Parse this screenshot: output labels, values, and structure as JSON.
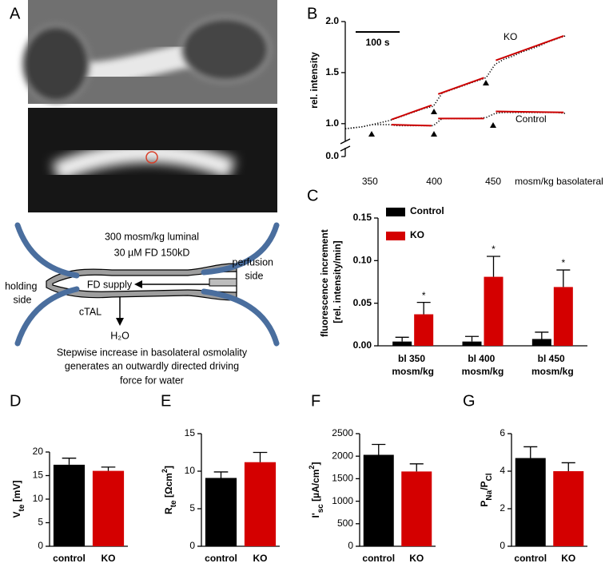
{
  "panel_a": {
    "label": "A",
    "luminal": "300 mosm/kg luminal",
    "perfusate": "30 µM FD 150kD",
    "holding": "holding side",
    "perfusion": "perfusion side",
    "supply": "FD supply",
    "segment": "cTAL",
    "water": "H₂O",
    "caption": [
      "Stepwise increase in basolateral osmolality",
      "generates an outwardly directed driving",
      "force for water"
    ]
  },
  "chart_data": [
    {
      "panel": "B",
      "type": "line",
      "ylabel": "rel. intensity",
      "xlabel": "mosm/kg basolateral",
      "x": [
        0,
        20,
        40,
        60,
        80,
        100,
        120,
        140,
        160,
        180,
        200,
        220,
        240,
        260,
        280,
        300,
        320,
        340,
        360,
        380,
        400,
        420,
        440,
        460,
        480,
        500
      ],
      "series": [
        {
          "name": "KO",
          "color": "#000000",
          "values": [
            0.95,
            0.96,
            0.97,
            0.99,
            1.01,
            1.03,
            1.06,
            1.09,
            1.12,
            1.15,
            1.17,
            1.3,
            1.33,
            1.36,
            1.39,
            1.42,
            1.45,
            1.58,
            1.63,
            1.66,
            1.7,
            1.73,
            1.76,
            1.8,
            1.83,
            1.86
          ]
        },
        {
          "name": "Control",
          "color": "#000000",
          "values": [
            0.95,
            0.96,
            0.97,
            0.99,
            0.99,
            0.99,
            0.98,
            0.98,
            0.98,
            0.98,
            0.98,
            1.05,
            1.05,
            1.05,
            1.05,
            1.05,
            1.06,
            1.1,
            1.11,
            1.11,
            1.11,
            1.11,
            1.11,
            1.11,
            1.11,
            1.1
          ]
        }
      ],
      "fits": [
        {
          "color": "#cc0000",
          "x": [
            105,
            196
          ],
          "values": [
            1.04,
            1.18
          ]
        },
        {
          "color": "#cc0000",
          "x": [
            211,
            315
          ],
          "values": [
            1.29,
            1.45
          ]
        },
        {
          "color": "#cc0000",
          "x": [
            342,
            496
          ],
          "values": [
            1.62,
            1.86
          ]
        },
        {
          "color": "#cc0000",
          "x": [
            105,
            196
          ],
          "values": [
            0.99,
            0.98
          ]
        },
        {
          "color": "#cc0000",
          "x": [
            211,
            315
          ],
          "values": [
            1.05,
            1.05
          ]
        },
        {
          "color": "#cc0000",
          "x": [
            342,
            496
          ],
          "values": [
            1.12,
            1.11
          ]
        }
      ],
      "xlim": [
        0,
        550
      ],
      "xticks": [
        {
          "value": 56,
          "label": "350"
        },
        {
          "value": 202,
          "label": "400"
        },
        {
          "value": 336,
          "label": "450"
        }
      ],
      "ylim": [
        0,
        2.0
      ],
      "axis_break": [
        0.05,
        0.85
      ],
      "yticks": [
        {
          "value": 0,
          "label": "0.0"
        },
        {
          "value": 1,
          "label": "1.0"
        },
        {
          "value": 1.5,
          "label": "1.5"
        },
        {
          "value": 2,
          "label": "2.0"
        }
      ],
      "scale_bar": {
        "label": "100 s",
        "length": 100
      }
    },
    {
      "panel": "C",
      "type": "bar",
      "ylabel": "fluorescence increment [rel. intensity/min]",
      "categories": [
        "bl 350 mosm/kg",
        "bl 400 mosm/kg",
        "bl 450 mosm/kg"
      ],
      "series": [
        {
          "name": "Control",
          "color": "#000000",
          "values": [
            0.005,
            0.005,
            0.008
          ],
          "errors": [
            0.005,
            0.006,
            0.008
          ]
        },
        {
          "name": "KO",
          "color": "#d40000",
          "values": [
            0.037,
            0.081,
            0.069
          ],
          "errors": [
            0.014,
            0.024,
            0.02
          ],
          "significance": [
            "*",
            "*",
            "*"
          ]
        }
      ],
      "ylim": [
        0,
        0.15
      ],
      "yticks": [
        {
          "value": 0,
          "label": "0.00"
        },
        {
          "value": 0.05,
          "label": "0.05"
        },
        {
          "value": 0.1,
          "label": "0.10"
        },
        {
          "value": 0.15,
          "label": "0.15"
        }
      ],
      "legend": "upper left"
    },
    {
      "panel": "D",
      "type": "bar",
      "ylabel": [
        {
          "text": "V"
        },
        {
          "text": "te",
          "sub": true
        },
        {
          "text": " [mV]"
        }
      ],
      "categories": [
        "control",
        "KO"
      ],
      "values": [
        17.3,
        16.0
      ],
      "errors": [
        1.4,
        0.8
      ],
      "colors": [
        "#000000",
        "#d40000"
      ],
      "ylim": [
        0,
        20
      ],
      "yticks": [
        0,
        5,
        10,
        15,
        20
      ]
    },
    {
      "panel": "E",
      "type": "bar",
      "ylabel": [
        {
          "text": "R"
        },
        {
          "text": "te",
          "sub": true
        },
        {
          "text": " [Ωcm"
        },
        {
          "text": "2",
          "sup": true
        },
        {
          "text": "]"
        }
      ],
      "categories": [
        "control",
        "KO"
      ],
      "values": [
        9.1,
        11.2
      ],
      "errors": [
        0.8,
        1.3
      ],
      "colors": [
        "#000000",
        "#d40000"
      ],
      "ylim": [
        0,
        15
      ],
      "yticks": [
        0,
        5,
        10,
        15
      ]
    },
    {
      "panel": "F",
      "type": "bar",
      "ylabel": [
        {
          "text": "I'"
        },
        {
          "text": "sc",
          "sub": true
        },
        {
          "text": " [µA/cm"
        },
        {
          "text": "2",
          "sup": true
        },
        {
          "text": "]"
        }
      ],
      "categories": [
        "control",
        "KO"
      ],
      "values": [
        2030,
        1660
      ],
      "errors": [
        230,
        170
      ],
      "colors": [
        "#000000",
        "#d40000"
      ],
      "ylim": [
        0,
        2500
      ],
      "yticks": [
        0,
        500,
        1000,
        1500,
        2000,
        2500
      ]
    },
    {
      "panel": "G",
      "type": "bar",
      "ylabel": [
        {
          "text": "P"
        },
        {
          "text": "Na",
          "sub": true
        },
        {
          "text": "/P"
        },
        {
          "text": "Cl",
          "sub": true
        }
      ],
      "categories": [
        "control",
        "KO"
      ],
      "values": [
        4.7,
        4.0
      ],
      "errors": [
        0.6,
        0.45
      ],
      "colors": [
        "#000000",
        "#d40000"
      ],
      "ylim": [
        0,
        6
      ],
      "yticks": [
        0,
        2,
        4,
        6
      ]
    }
  ]
}
